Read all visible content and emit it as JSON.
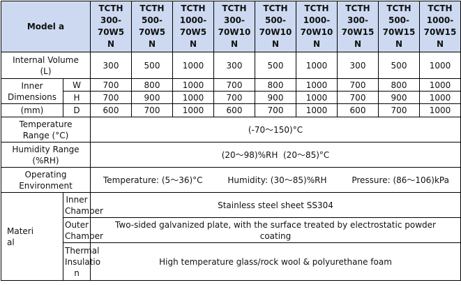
{
  "header": {
    "model_label": "Model a",
    "models": [
      "TCTH\n300-\n70W5\nN",
      "TCTH\n500-\n70W5\nN",
      "TCTH\n1000-\n70W5\nN",
      "TCTH\n300-\n70W10\nN",
      "TCTH\n500-\n70W10\nN",
      "TCTH\n1000-\n70W10\nN",
      "TCTH\n300-\n70W15\nN",
      "TCTH\n500-\n70W15\nN",
      "TCTH\n1000-\n70W15\nN"
    ]
  },
  "volume": {
    "label": "Internal Volume\n(L)",
    "values": [
      "300",
      "500",
      "1000",
      "300",
      "500",
      "1000",
      "300",
      "500",
      "1000"
    ]
  },
  "dimensions": {
    "label_top": "Inner\nDimensions",
    "label_unit": "(mm)",
    "rows": [
      {
        "axis": "W",
        "values": [
          "700",
          "800",
          "1000",
          "700",
          "800",
          "1000",
          "700",
          "800",
          "1000"
        ]
      },
      {
        "axis": "H",
        "values": [
          "700",
          "900",
          "1000",
          "700",
          "900",
          "1000",
          "700",
          "900",
          "1000"
        ]
      },
      {
        "axis": "D",
        "values": [
          "600",
          "700",
          "1000",
          "600",
          "700",
          "1000",
          "600",
          "700",
          "1000"
        ]
      }
    ]
  },
  "temperature": {
    "label": "Temperature\nRange  (°C)",
    "value": "(-70～150)°C"
  },
  "humidity": {
    "label": "Humidity Range\n(%RH)",
    "value": "(20～98)%RH  (20～85)°C"
  },
  "operating": {
    "label": "Operating\nEnvironment",
    "temperature": "Temperature: (5～36)°C",
    "humidity": "Humidity: (30～85)%RH",
    "pressure": "Pressure: (86～106)kPa"
  },
  "material": {
    "label": "Materi\nal",
    "rows": [
      {
        "sub": "Inner\nChamber",
        "value": "Stainless steel sheet SS304"
      },
      {
        "sub": "Outer\nChamber",
        "value": "Two-sided galvanized plate, with the surface treated by electrostatic powder\ncoating"
      },
      {
        "sub": "Thermal\nInsulatio\nn",
        "value": "High temperature glass/rock wool & polyurethane foam"
      }
    ]
  }
}
